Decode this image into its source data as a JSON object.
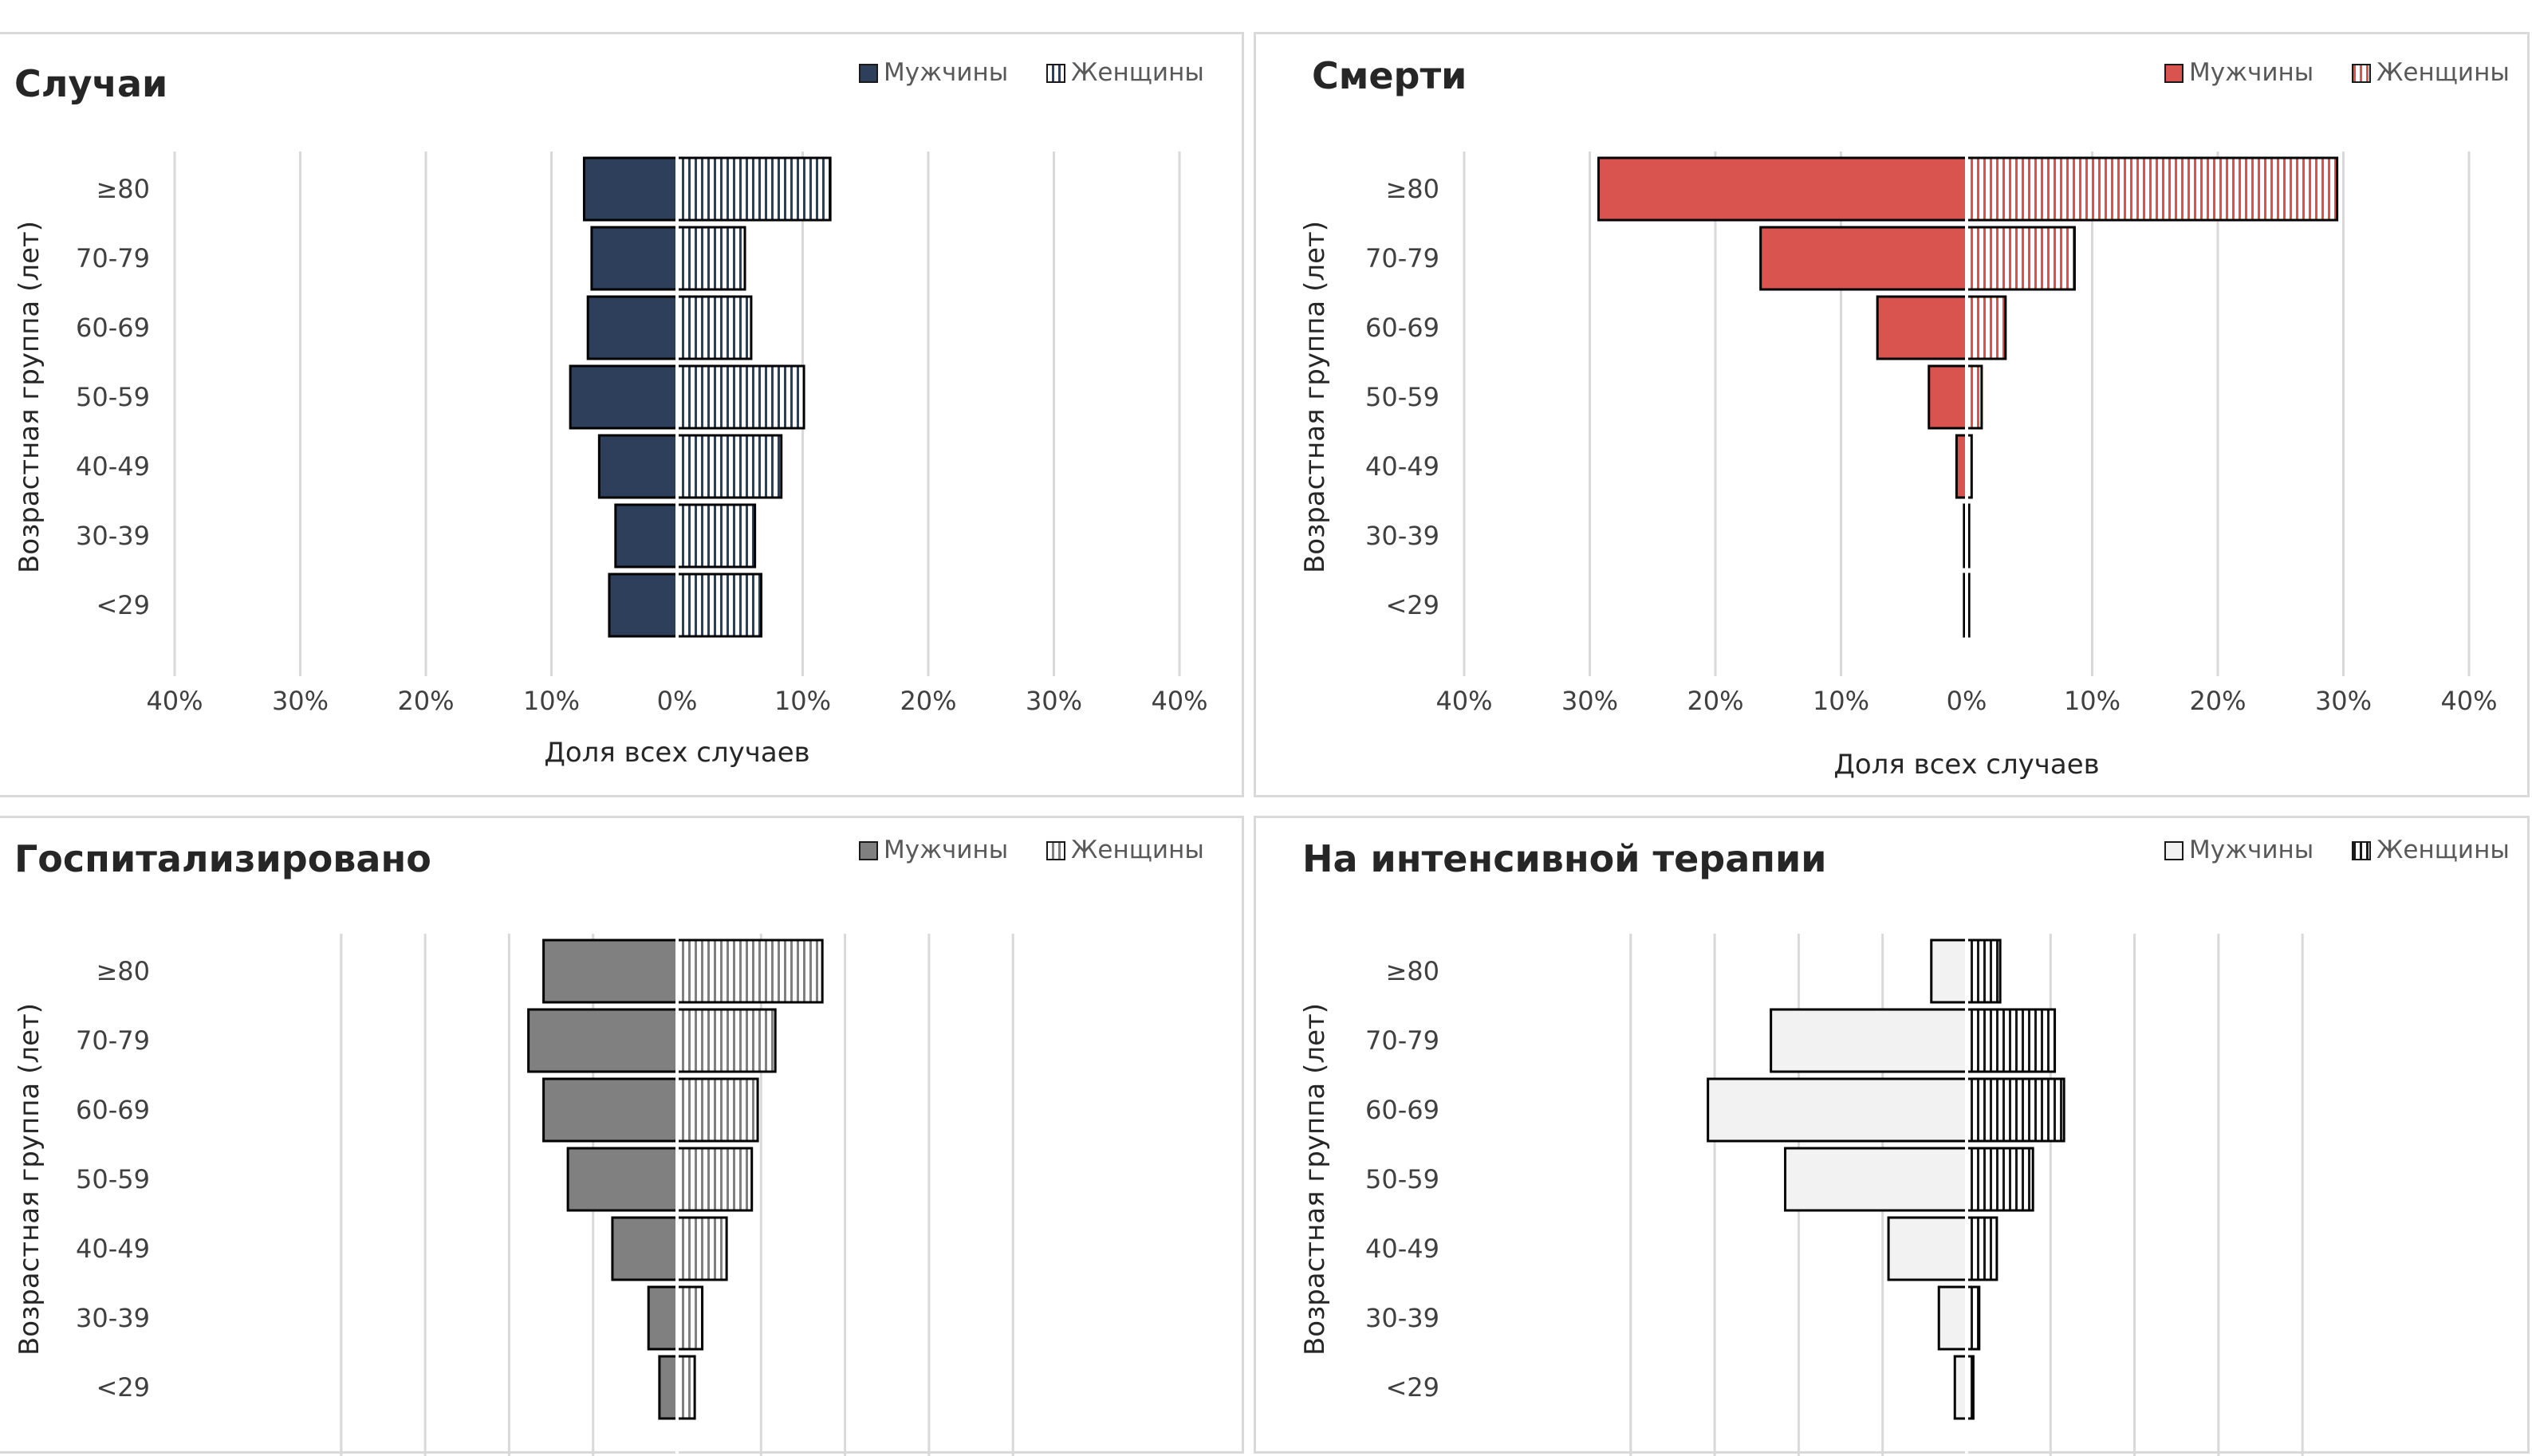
{
  "chart_data": [
    {
      "type": "bar",
      "title": "Случаи",
      "xlabel": "Доля всех случаев",
      "ylabel": "Возрастная группа (лет)",
      "categories": [
        "≥80",
        "70-79",
        "60-69",
        "50-59",
        "40-49",
        "30-39",
        "<29"
      ],
      "xlim": [
        -40,
        40
      ],
      "x_ticks": [
        "40%",
        "30%",
        "20%",
        "10%",
        "0%",
        "10%",
        "20%",
        "30%",
        "40%"
      ],
      "series": [
        {
          "name": "Мужчины",
          "values": [
            7.4,
            6.8,
            7.1,
            8.5,
            6.2,
            4.9,
            5.4
          ],
          "color": "#2e3f5c",
          "pattern": "solid"
        },
        {
          "name": "Женщины",
          "values": [
            12.2,
            5.4,
            5.9,
            10.1,
            8.3,
            6.2,
            6.7
          ],
          "color": "#2e3f5c",
          "pattern": "stripes"
        }
      ],
      "grid": true,
      "legend_position": "top-right"
    },
    {
      "type": "bar",
      "title": "Смерти",
      "xlabel": "Доля всех случаев",
      "ylabel": "Возрастная группа (лет)",
      "categories": [
        "≥80",
        "70-79",
        "60-69",
        "50-59",
        "40-49",
        "30-39",
        "<29"
      ],
      "xlim": [
        -40,
        40
      ],
      "x_ticks": [
        "40%",
        "30%",
        "20%",
        "10%",
        "0%",
        "10%",
        "20%",
        "30%",
        "40%"
      ],
      "series": [
        {
          "name": "Мужчины",
          "values": [
            29.3,
            16.4,
            7.1,
            3.0,
            0.8,
            0.2,
            0.2
          ],
          "color": "#d9534f",
          "pattern": "solid"
        },
        {
          "name": "Женщины",
          "values": [
            29.5,
            8.6,
            3.1,
            1.2,
            0.4,
            0.2,
            0.2
          ],
          "color": "#d9534f",
          "pattern": "stripes"
        }
      ],
      "grid": true,
      "legend_position": "top-right"
    },
    {
      "type": "bar",
      "title": "Госпитализировано",
      "ylabel": "Возрастная группа (лет)",
      "categories": [
        "≥80",
        "70-79",
        "60-69",
        "50-59",
        "40-49",
        "30-39",
        "<29"
      ],
      "xlim": [
        -40,
        40
      ],
      "series": [
        {
          "name": "Мужчины",
          "values": [
            15.9,
            17.7,
            15.9,
            13.0,
            7.7,
            3.4,
            2.1
          ],
          "color": "#808080",
          "pattern": "solid"
        },
        {
          "name": "Женщины",
          "values": [
            17.3,
            11.7,
            9.6,
            8.9,
            5.9,
            3.0,
            2.1
          ],
          "color": "#808080",
          "pattern": "stripes"
        }
      ],
      "grid": true,
      "legend_position": "top-right"
    },
    {
      "type": "bar",
      "title": "На интенсивной терапии",
      "ylabel": "Возрастная группа (лет)",
      "categories": [
        "≥80",
        "70-79",
        "60-69",
        "50-59",
        "40-49",
        "30-39",
        "<29"
      ],
      "xlim": [
        -40,
        40
      ],
      "series": [
        {
          "name": "Мужчины",
          "values": [
            4.2,
            23.3,
            30.8,
            21.6,
            9.3,
            3.3,
            1.4
          ],
          "color": "#f2f2f2",
          "pattern": "solid"
        },
        {
          "name": "Женщины",
          "values": [
            4.0,
            10.5,
            11.6,
            7.9,
            3.6,
            1.5,
            0.8
          ],
          "color": "#1a1a1a",
          "pattern": "stripes"
        }
      ],
      "grid": true,
      "legend_position": "top-right"
    }
  ]
}
